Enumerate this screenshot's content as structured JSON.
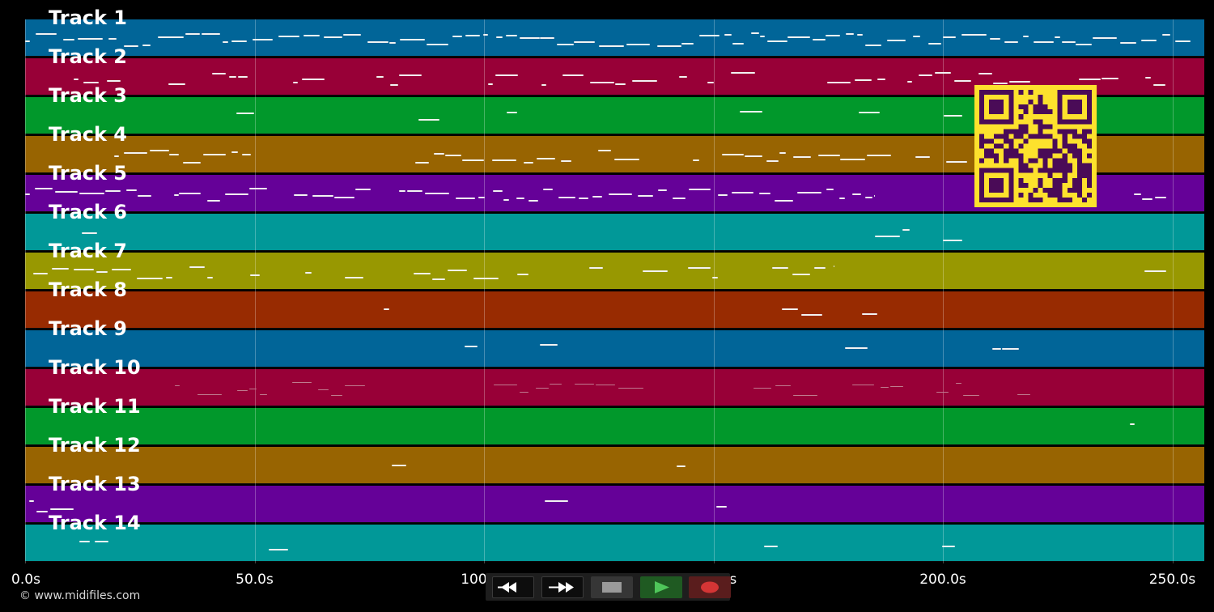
{
  "app": {
    "copyright": "© www.midifiles.com"
  },
  "colors": {
    "background": "#000000",
    "track_palette": [
      "#016598",
      "#980037",
      "#01982b",
      "#986401",
      "#650198",
      "#019898",
      "#989801",
      "#982b01"
    ],
    "qr_bg": "#fde12d",
    "qr_fg": "#4a0b57"
  },
  "timeline": {
    "ticks": [
      {
        "value": 0,
        "label": "0.0s"
      },
      {
        "value": 50,
        "label": "50.0s"
      },
      {
        "value": 100,
        "label": "100.0s"
      },
      {
        "value": 150,
        "label": "150.0s"
      },
      {
        "value": 200,
        "label": "200.0s"
      },
      {
        "value": 250,
        "label": "250.0s"
      }
    ],
    "max_seconds": 257
  },
  "tracks": [
    {
      "label": "Track 1",
      "color": "#016598"
    },
    {
      "label": "Track 2",
      "color": "#980037"
    },
    {
      "label": "Track 3",
      "color": "#01982b"
    },
    {
      "label": "Track 4",
      "color": "#986401"
    },
    {
      "label": "Track 5",
      "color": "#650198"
    },
    {
      "label": "Track 6",
      "color": "#019898"
    },
    {
      "label": "Track 7",
      "color": "#989801"
    },
    {
      "label": "Track 8",
      "color": "#982b01"
    },
    {
      "label": "Track 9",
      "color": "#016598"
    },
    {
      "label": "Track 10",
      "color": "#980037"
    },
    {
      "label": "Track 11",
      "color": "#01982b"
    },
    {
      "label": "Track 12",
      "color": "#986401"
    },
    {
      "label": "Track 13",
      "color": "#650198"
    },
    {
      "label": "Track 14",
      "color": "#019898"
    }
  ],
  "transport": {
    "buttons": [
      {
        "name": "rewind-button",
        "icon": "rewind-icon"
      },
      {
        "name": "fast-forward-button",
        "icon": "fast-forward-icon"
      },
      {
        "name": "stop-button",
        "icon": "stop-icon"
      },
      {
        "name": "play-button",
        "icon": "play-icon"
      },
      {
        "name": "record-button",
        "icon": "record-icon"
      }
    ]
  }
}
